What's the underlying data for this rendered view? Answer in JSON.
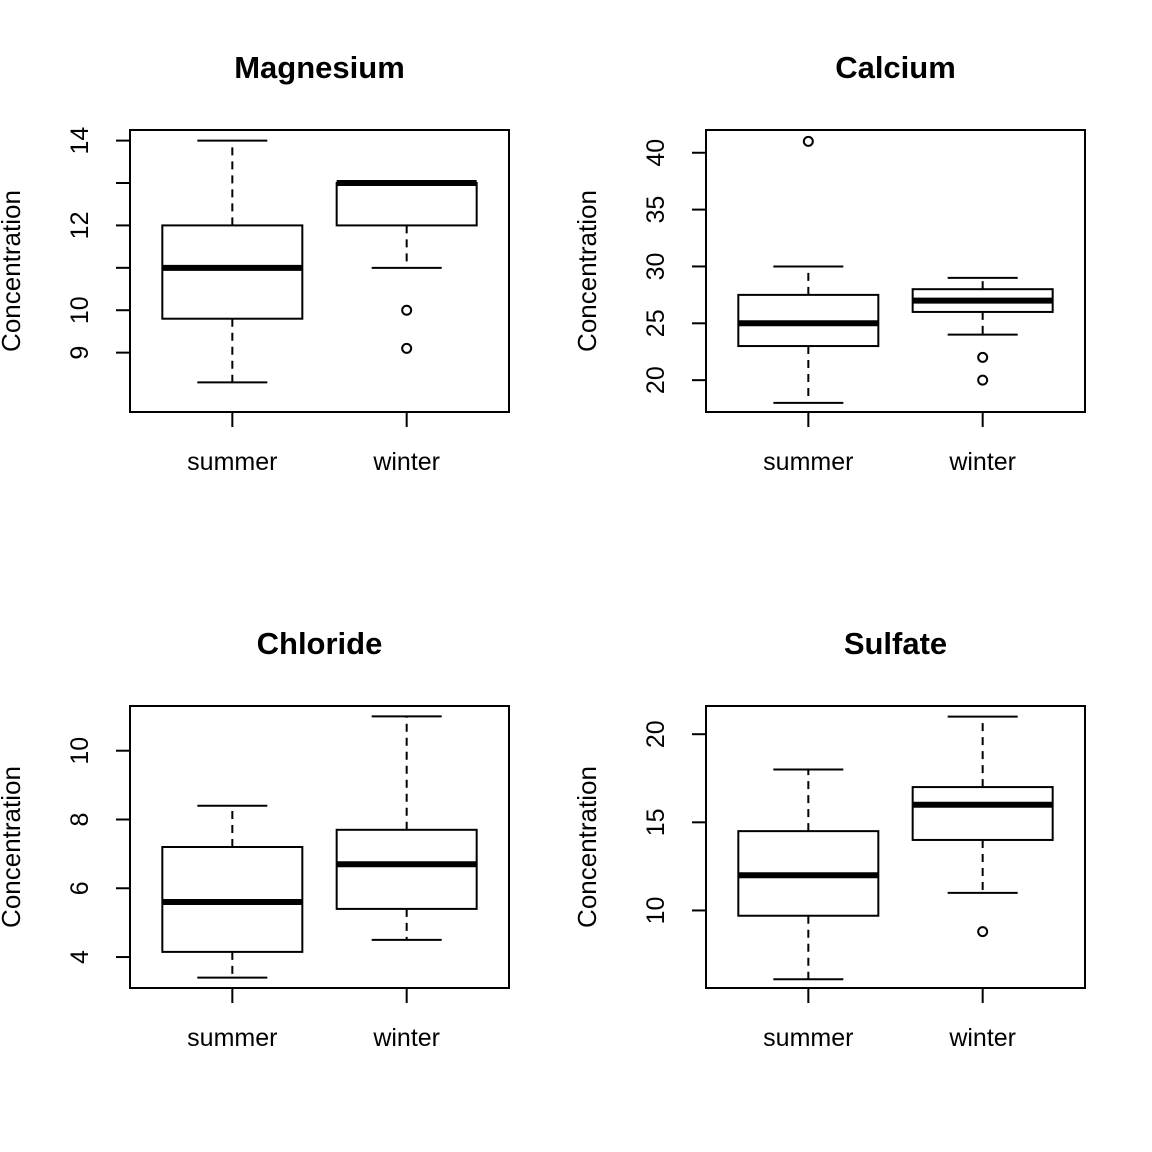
{
  "chart_data": [
    {
      "type": "boxplot",
      "title": "Magnesium",
      "ylabel": "Concentration",
      "categories": [
        "summer",
        "winter"
      ],
      "ylim": [
        7.6,
        14.25
      ],
      "yticks": [
        9,
        10,
        12,
        14
      ],
      "yticks_labeled": [
        9,
        10,
        12,
        14
      ],
      "yticks_unlabeled": [
        11,
        13
      ],
      "boxes": [
        {
          "name": "summer",
          "whisker_low": 8.3,
          "q1": 9.8,
          "median": 11,
          "q3": 12,
          "whisker_high": 14,
          "outliers": []
        },
        {
          "name": "winter",
          "whisker_low": 11,
          "q1": 12,
          "median": 13,
          "q3": 13,
          "whisker_high": 13,
          "outliers": [
            10,
            9.1
          ]
        }
      ]
    },
    {
      "type": "boxplot",
      "title": "Calcium",
      "ylabel": "Concentration",
      "categories": [
        "summer",
        "winter"
      ],
      "ylim": [
        17.2,
        42
      ],
      "yticks": [
        20,
        25,
        30,
        35,
        40
      ],
      "yticks_labeled": [
        20,
        25,
        30,
        35,
        40
      ],
      "yticks_unlabeled": [],
      "boxes": [
        {
          "name": "summer",
          "whisker_low": 18,
          "q1": 23,
          "median": 25,
          "q3": 27.5,
          "whisker_high": 30,
          "outliers": [
            41
          ]
        },
        {
          "name": "winter",
          "whisker_low": 24,
          "q1": 26,
          "median": 27,
          "q3": 28,
          "whisker_high": 29,
          "outliers": [
            22,
            20
          ]
        }
      ]
    },
    {
      "type": "boxplot",
      "title": "Chloride",
      "ylabel": "Concentration",
      "categories": [
        "summer",
        "winter"
      ],
      "ylim": [
        3.1,
        11.3
      ],
      "yticks": [
        4,
        6,
        8,
        10
      ],
      "yticks_labeled": [
        4,
        6,
        8,
        10
      ],
      "yticks_unlabeled": [],
      "boxes": [
        {
          "name": "summer",
          "whisker_low": 3.4,
          "q1": 4.15,
          "median": 5.6,
          "q3": 7.2,
          "whisker_high": 8.4,
          "outliers": []
        },
        {
          "name": "winter",
          "whisker_low": 4.5,
          "q1": 5.4,
          "median": 6.7,
          "q3": 7.7,
          "whisker_high": 11,
          "outliers": []
        }
      ]
    },
    {
      "type": "boxplot",
      "title": "Sulfate",
      "ylabel": "Concentration",
      "categories": [
        "summer",
        "winter"
      ],
      "ylim": [
        5.6,
        21.6
      ],
      "yticks": [
        10,
        15,
        20
      ],
      "yticks_labeled": [
        10,
        15,
        20
      ],
      "yticks_unlabeled": [],
      "boxes": [
        {
          "name": "summer",
          "whisker_low": 6.1,
          "q1": 9.7,
          "median": 12,
          "q3": 14.5,
          "whisker_high": 18,
          "outliers": []
        },
        {
          "name": "winter",
          "whisker_low": 11,
          "q1": 14,
          "median": 16,
          "q3": 17,
          "whisker_high": 21,
          "outliers": [
            8.8
          ]
        }
      ]
    }
  ]
}
